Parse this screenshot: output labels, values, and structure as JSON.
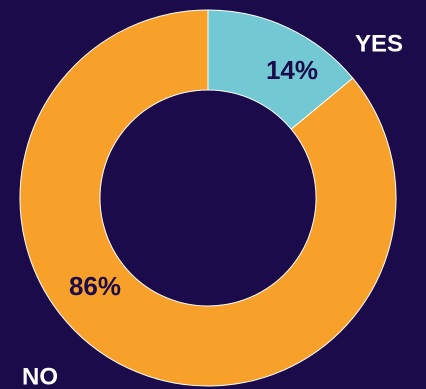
{
  "chart_data": {
    "type": "donut",
    "categories": [
      "YES",
      "NO"
    ],
    "values": [
      14,
      86
    ],
    "value_labels": [
      "14%",
      "86%"
    ],
    "colors": [
      "#72c9d3",
      "#f7a12b"
    ]
  }
}
